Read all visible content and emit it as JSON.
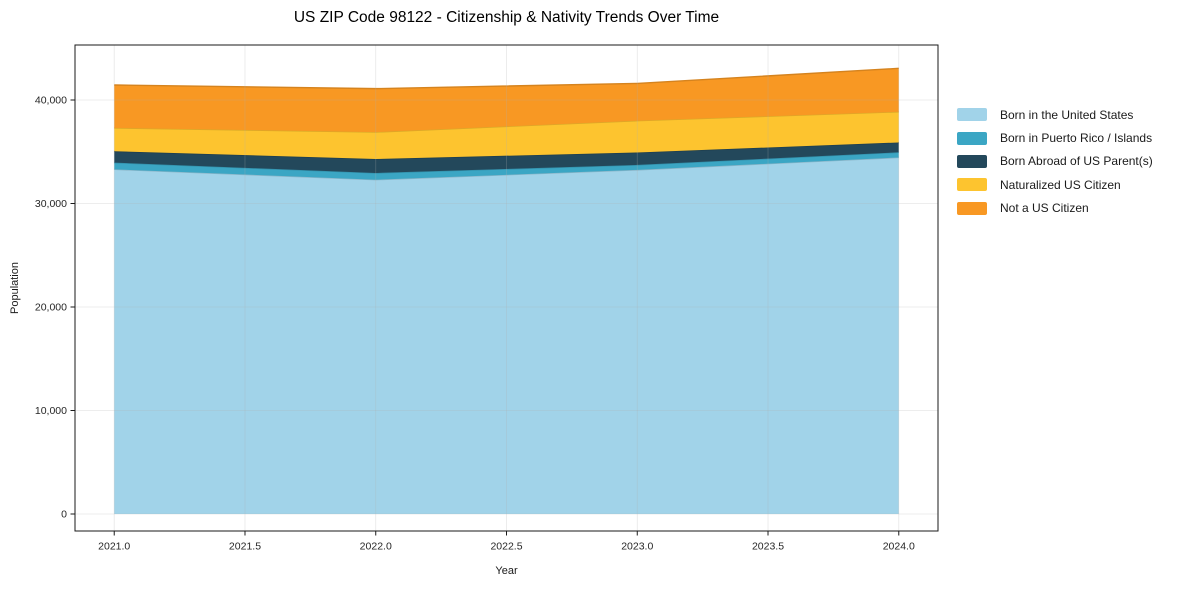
{
  "figure": {
    "background": "#ffffff",
    "spine_color": "#1a1a1a",
    "grid_color": "#b0b0b0",
    "tick_label_color": "#262626"
  },
  "chart_data": {
    "type": "area",
    "stacked": true,
    "title": "US ZIP Code 98122 - Citizenship & Nativity Trends Over Time",
    "xlabel": "Year",
    "ylabel": "Population",
    "x": [
      2021,
      2022,
      2023,
      2024
    ],
    "series": [
      {
        "name": "Born in the United States",
        "color": "#A1D3E9",
        "values": [
          33300,
          32300,
          33250,
          34450
        ]
      },
      {
        "name": "Born in Puerto Rico / Islands",
        "color": "#3BA6C4",
        "values": [
          650,
          650,
          480,
          500
        ]
      },
      {
        "name": "Born Abroad of US Parent(s)",
        "color": "#23485B",
        "values": [
          1100,
          1350,
          1200,
          950
        ]
      },
      {
        "name": "Naturalized US Citizen",
        "color": "#FDC42F",
        "values": [
          2250,
          2600,
          3070,
          2960
        ]
      },
      {
        "name": "Not a US Citizen",
        "color": "#F89823",
        "values": [
          4150,
          4200,
          3600,
          4200
        ]
      }
    ],
    "stack_totals": [
      41450,
      41100,
      41600,
      43060
    ],
    "xticks": [
      2021.0,
      2021.5,
      2022.0,
      2022.5,
      2023.0,
      2023.5,
      2024.0
    ],
    "xtick_labels": [
      "2021.0",
      "2021.5",
      "2022.0",
      "2022.5",
      "2023.0",
      "2023.5",
      "2024.0"
    ],
    "yticks": [
      0,
      10000,
      20000,
      30000,
      40000
    ],
    "ytick_labels": [
      "0",
      "10,000",
      "20,000",
      "30,000",
      "40,000"
    ],
    "xlim": [
      2020.85,
      2024.15
    ],
    "ylim": [
      -1643,
      45315
    ],
    "grid": true,
    "legend_position": "outside-right-top"
  }
}
